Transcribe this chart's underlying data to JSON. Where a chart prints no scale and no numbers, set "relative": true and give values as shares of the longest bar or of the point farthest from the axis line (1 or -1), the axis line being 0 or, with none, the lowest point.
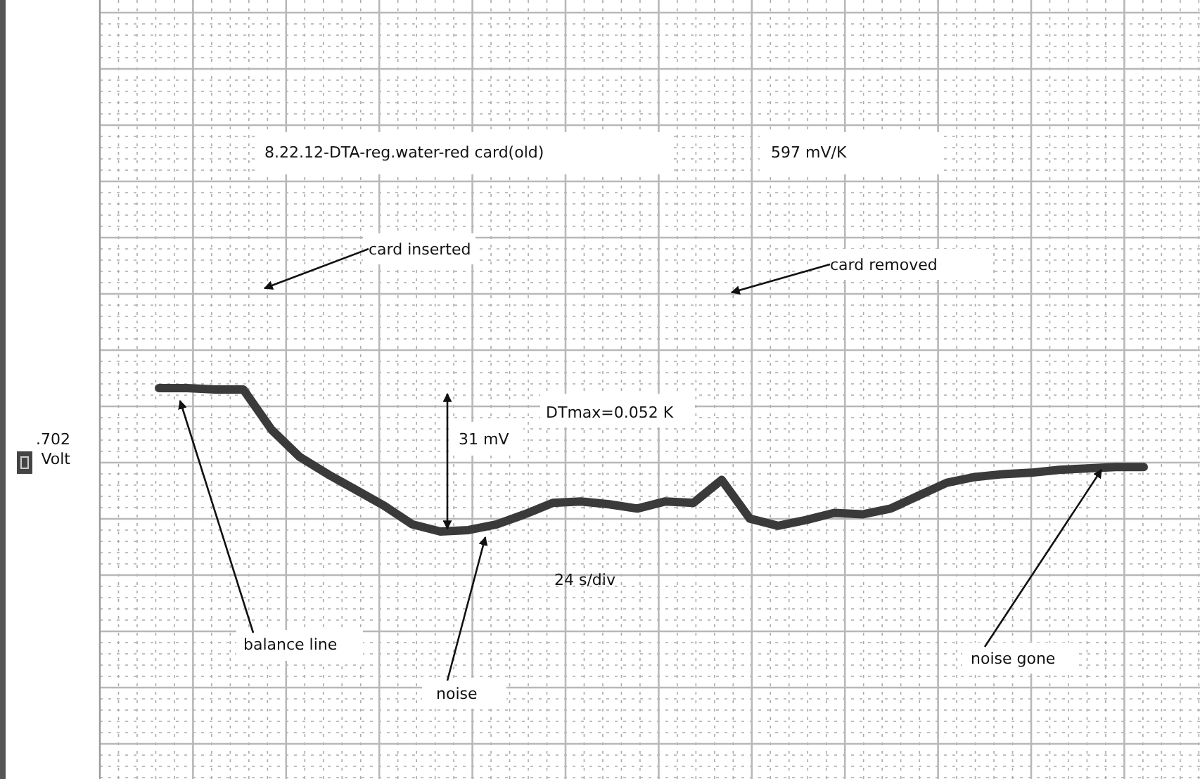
{
  "chart_data": {
    "type": "line",
    "relative": true,
    "grid": true,
    "marker": "none",
    "line_style": "solid",
    "categories": [
      null,
      null,
      null,
      null,
      null,
      null,
      null,
      null,
      null,
      null,
      null,
      null,
      null,
      null,
      null,
      null,
      null,
      null,
      null,
      null,
      null,
      null,
      null,
      null,
      null,
      null,
      null,
      null,
      null,
      null,
      null,
      null,
      null,
      null,
      null,
      null
    ],
    "series": [
      {
        "color": "#3a3a3a",
        "values": [
          1.0,
          1.0,
          0.99,
          0.99,
          0.71,
          0.52,
          0.4,
          0.29,
          0.18,
          0.05,
          0,
          0.01,
          0.05,
          0.12,
          0.2,
          0.21,
          0.19,
          0.16,
          0.21,
          0.2,
          0.36,
          0.09,
          0.04,
          0.08,
          0.13,
          0.12,
          0.16,
          0.25,
          0.34,
          0.38,
          0.4,
          0.41,
          0.43,
          0.44,
          0.45,
          0.45
        ]
      }
    ],
    "annotations": [
      "8.22.12-DTA-reg.water-red card(old)",
      "597 mV/K",
      "card inserted",
      "card removed",
      "31 mV",
      "DTmax=0.052 K",
      "24 s/div",
      "balance line",
      "noise",
      "noise gone",
      ".702 Volt"
    ]
  }
}
